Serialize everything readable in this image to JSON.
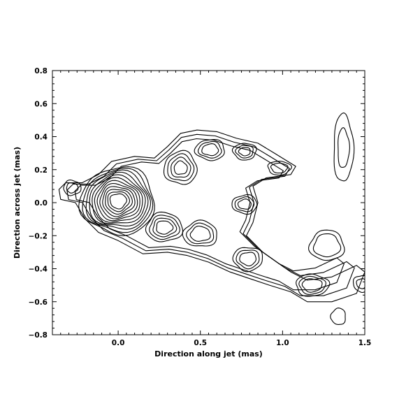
{
  "chart_data": {
    "type": "contour",
    "title": "",
    "xlabel": "Direction along jet (mas)",
    "ylabel": "Direction across jet (mas)",
    "xlim": [
      -0.4,
      1.5
    ],
    "ylim": [
      -0.8,
      0.8
    ],
    "x_ticks": [
      {
        "value": 0.0,
        "label": "0.0"
      },
      {
        "value": 0.5,
        "label": "0.5"
      },
      {
        "value": 1.0,
        "label": "1.0"
      },
      {
        "value": 1.5,
        "label": "1.5"
      }
    ],
    "y_ticks": [
      {
        "value": 0.8,
        "label": "0.8"
      },
      {
        "value": 0.6,
        "label": "0.6"
      },
      {
        "value": 0.4,
        "label": "0.4"
      },
      {
        "value": 0.2,
        "label": "0.2"
      },
      {
        "value": 0.0,
        "label": "0.0"
      },
      {
        "value": -0.2,
        "label": "−0.2"
      },
      {
        "value": -0.4,
        "label": "−0.4"
      },
      {
        "value": -0.6,
        "label": "−0.6"
      },
      {
        "value": -0.8,
        "label": "−0.8"
      }
    ],
    "grid": false,
    "line_color": "#000000",
    "components": [
      {
        "x": 0.0,
        "y": 0.01,
        "rx": 0.05,
        "ry": 0.045,
        "levels": 12,
        "step": 0.016
      },
      {
        "x": -0.28,
        "y": 0.09,
        "rx": 0.035,
        "ry": 0.03,
        "levels": 2,
        "step": 0.018
      },
      {
        "x": 0.38,
        "y": 0.21,
        "rx": 0.04,
        "ry": 0.04,
        "levels": 4,
        "step": 0.02
      },
      {
        "x": 0.56,
        "y": 0.32,
        "rx": 0.05,
        "ry": 0.035,
        "levels": 3,
        "step": 0.02
      },
      {
        "x": 0.77,
        "y": 0.31,
        "rx": 0.035,
        "ry": 0.025,
        "levels": 3,
        "step": 0.018
      },
      {
        "x": 0.98,
        "y": 0.21,
        "rx": 0.05,
        "ry": 0.03,
        "levels": 2,
        "step": 0.02
      },
      {
        "x": 0.28,
        "y": -0.15,
        "rx": 0.05,
        "ry": 0.04,
        "levels": 4,
        "step": 0.02
      },
      {
        "x": 0.5,
        "y": -0.19,
        "rx": 0.06,
        "ry": 0.045,
        "levels": 3,
        "step": 0.022
      },
      {
        "x": 0.77,
        "y": -0.01,
        "rx": 0.04,
        "ry": 0.03,
        "levels": 3,
        "step": 0.018
      },
      {
        "x": 0.79,
        "y": -0.34,
        "rx": 0.05,
        "ry": 0.04,
        "levels": 3,
        "step": 0.02
      },
      {
        "x": 1.18,
        "y": -0.5,
        "rx": 0.06,
        "ry": 0.04,
        "levels": 3,
        "step": 0.02
      },
      {
        "x": 1.37,
        "y": 0.33,
        "rx": 0.035,
        "ry": 0.12,
        "levels": 2,
        "step": 0.025
      },
      {
        "x": 1.27,
        "y": -0.26,
        "rx": 0.08,
        "ry": 0.07,
        "levels": 2,
        "step": 0.025
      },
      {
        "x": 1.34,
        "y": -0.69,
        "rx": 0.045,
        "ry": 0.05,
        "levels": 1,
        "step": 0.02
      },
      {
        "x": 1.48,
        "y": -0.49,
        "rx": 0.03,
        "ry": 0.03,
        "levels": 2,
        "step": 0.02
      }
    ],
    "envelope": [
      [
        -0.32,
        0.12
      ],
      [
        -0.22,
        0.12
      ],
      [
        -0.12,
        0.17
      ],
      [
        -0.04,
        0.25
      ],
      [
        0.1,
        0.28
      ],
      [
        0.22,
        0.27
      ],
      [
        0.3,
        0.34
      ],
      [
        0.38,
        0.42
      ],
      [
        0.48,
        0.44
      ],
      [
        0.6,
        0.43
      ],
      [
        0.72,
        0.39
      ],
      [
        0.85,
        0.36
      ],
      [
        0.95,
        0.3
      ],
      [
        1.08,
        0.22
      ],
      [
        1.05,
        0.17
      ],
      [
        0.9,
        0.15
      ],
      [
        0.82,
        0.1
      ],
      [
        0.85,
        0.0
      ],
      [
        0.82,
        -0.12
      ],
      [
        0.78,
        -0.2
      ],
      [
        0.88,
        -0.3
      ],
      [
        1.05,
        -0.42
      ],
      [
        1.15,
        -0.47
      ],
      [
        1.3,
        -0.45
      ],
      [
        1.45,
        -0.38
      ],
      [
        1.5,
        -0.42
      ],
      [
        1.45,
        -0.55
      ],
      [
        1.3,
        -0.6
      ],
      [
        1.15,
        -0.6
      ],
      [
        1.05,
        -0.54
      ],
      [
        0.92,
        -0.5
      ],
      [
        0.8,
        -0.46
      ],
      [
        0.68,
        -0.42
      ],
      [
        0.55,
        -0.36
      ],
      [
        0.42,
        -0.32
      ],
      [
        0.3,
        -0.3
      ],
      [
        0.15,
        -0.31
      ],
      [
        0.0,
        -0.23
      ],
      [
        -0.12,
        -0.18
      ],
      [
        -0.2,
        -0.1
      ],
      [
        -0.26,
        0.0
      ],
      [
        -0.35,
        0.02
      ],
      [
        -0.36,
        0.08
      ]
    ]
  }
}
